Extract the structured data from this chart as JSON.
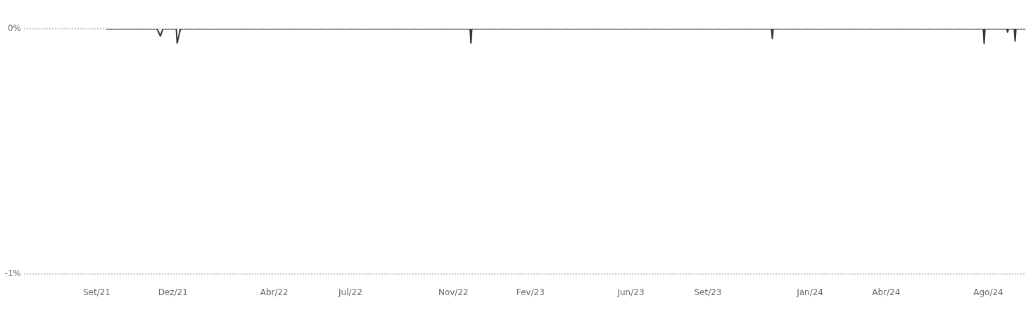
{
  "chart_data": {
    "type": "line",
    "x": [
      "2021-09-23",
      "2021-11-22",
      "2021-11-26",
      "2021-11-29",
      "2021-12-15",
      "2021-12-16",
      "2021-12-20",
      "2022-12-01",
      "2022-12-02",
      "2022-12-03",
      "2023-11-26",
      "2023-11-27",
      "2023-11-28",
      "2024-08-05",
      "2024-08-06",
      "2024-08-07",
      "2024-09-02",
      "2024-09-03",
      "2024-09-04",
      "2024-09-11",
      "2024-09-12",
      "2024-09-13",
      "2024-09-24"
    ],
    "series": [
      {
        "color": "#333333",
        "values": [
          0,
          0,
          -0.03,
          0,
          0,
          -0.058,
          0,
          0,
          -0.058,
          0,
          0,
          -0.04,
          0,
          0,
          -0.06,
          0,
          0,
          -0.014,
          0,
          0,
          -0.05,
          0,
          0
        ]
      }
    ],
    "xlim": [
      "2021-06-16",
      "2024-09-25"
    ],
    "xticks": [
      {
        "value": "2021-09-11",
        "label": "Set/21"
      },
      {
        "value": "2021-12-11",
        "label": "Dez/21"
      },
      {
        "value": "2022-04-11",
        "label": "Abr/22"
      },
      {
        "value": "2022-07-11",
        "label": "Jul/22"
      },
      {
        "value": "2022-11-11",
        "label": "Nov/22"
      },
      {
        "value": "2023-02-11",
        "label": "Fev/23"
      },
      {
        "value": "2023-06-11",
        "label": "Jun/23"
      },
      {
        "value": "2023-09-11",
        "label": "Set/23"
      },
      {
        "value": "2024-01-11",
        "label": "Jan/24"
      },
      {
        "value": "2024-04-11",
        "label": "Abr/24"
      },
      {
        "value": "2024-08-11",
        "label": "Ago/24"
      }
    ],
    "ylim": [
      -1,
      0
    ],
    "yticks": [
      {
        "value": -1,
        "label": "-1%"
      },
      {
        "value": 0,
        "label": "0%"
      }
    ],
    "grid": "y",
    "legend": false,
    "marker": "none",
    "line_style": "solid"
  }
}
